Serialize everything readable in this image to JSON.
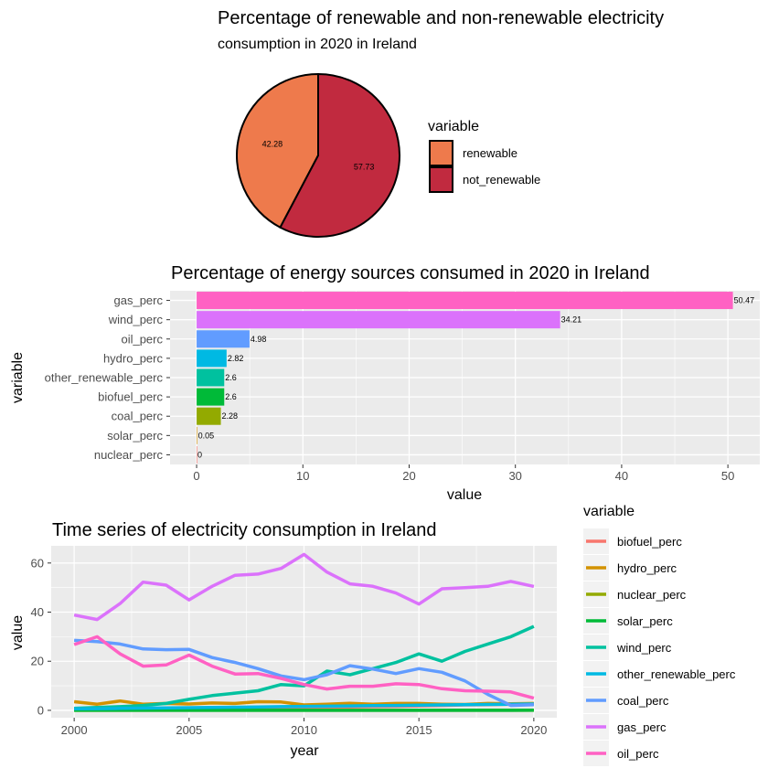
{
  "chart_data": [
    {
      "type": "pie",
      "title": "Percentage of renewable and non-renewable electricity",
      "subtitle": "consumption in 2020 in Ireland",
      "legend_title": "variable",
      "legend_position": "right",
      "slices": [
        {
          "label": "renewable",
          "value": 42.28,
          "color": "#EE7A4C"
        },
        {
          "label": "not_renewable",
          "value": 57.73,
          "color": "#C12A3F"
        }
      ]
    },
    {
      "type": "bar",
      "orientation": "horizontal",
      "title": "Percentage of energy sources consumed in 2020 in Ireland",
      "xlabel": "value",
      "ylabel": "variable",
      "xlim": [
        -2.5,
        53
      ],
      "xticks": [
        0,
        10,
        20,
        30,
        40,
        50
      ],
      "categories": [
        "gas_perc",
        "wind_perc",
        "oil_perc",
        "hydro_perc",
        "other_renewable_perc",
        "biofuel_perc",
        "coal_perc",
        "solar_perc",
        "nuclear_perc"
      ],
      "values": [
        50.47,
        34.21,
        4.98,
        2.82,
        2.6,
        2.6,
        2.28,
        0.05,
        0
      ],
      "value_labels": [
        "50.47",
        "34.21",
        "4.98",
        "2.82",
        "2.6",
        "2.6",
        "2.28",
        "0.05",
        "0"
      ],
      "colors": [
        "#FF61C3",
        "#DB72FB",
        "#619CFF",
        "#00B9E3",
        "#00C19F",
        "#00BA38",
        "#93AA00",
        "#D39200",
        "#F8766D"
      ],
      "grid": true
    },
    {
      "type": "line",
      "title": "Time series of electricity consumption in Ireland",
      "xlabel": "year",
      "ylabel": "value",
      "xlim": [
        1999,
        2021
      ],
      "ylim": [
        -3,
        67
      ],
      "xticks": [
        2000,
        2005,
        2010,
        2015,
        2020
      ],
      "yticks": [
        0,
        20,
        40,
        60
      ],
      "legend_title": "variable",
      "legend_position": "right",
      "grid": true,
      "x": [
        2000,
        2001,
        2002,
        2003,
        2004,
        2005,
        2006,
        2007,
        2008,
        2009,
        2010,
        2011,
        2012,
        2013,
        2014,
        2015,
        2016,
        2017,
        2018,
        2019,
        2020
      ],
      "series": [
        {
          "name": "biofuel_perc",
          "color": "#F8766D",
          "values": [
            0.3,
            0.3,
            0.4,
            0.4,
            0.5,
            0.5,
            0.6,
            0.7,
            0.8,
            1.0,
            1.2,
            1.3,
            1.4,
            1.5,
            1.6,
            1.8,
            2.0,
            2.2,
            2.3,
            2.5,
            2.6
          ]
        },
        {
          "name": "hydro_perc",
          "color": "#D39200",
          "values": [
            3.5,
            2.5,
            3.8,
            2.5,
            2.8,
            2.6,
            3.0,
            2.8,
            3.5,
            3.4,
            2.2,
            2.5,
            2.9,
            2.5,
            2.8,
            2.8,
            2.5,
            2.4,
            2.8,
            2.7,
            2.8
          ]
        },
        {
          "name": "nuclear_perc",
          "color": "#93AA00",
          "values": [
            0,
            0,
            0,
            0,
            0,
            0,
            0,
            0,
            0,
            0,
            0,
            0,
            0,
            0,
            0,
            0,
            0,
            0,
            0,
            0,
            0
          ]
        },
        {
          "name": "solar_perc",
          "color": "#00BA38",
          "values": [
            0,
            0,
            0,
            0,
            0,
            0,
            0,
            0,
            0,
            0,
            0,
            0,
            0,
            0,
            0,
            0,
            0,
            0,
            0,
            0.02,
            0.05
          ]
        },
        {
          "name": "wind_perc",
          "color": "#00C19F",
          "values": [
            0.8,
            1.2,
            1.5,
            2.0,
            2.8,
            4.5,
            6.0,
            7.0,
            8.0,
            10.5,
            10.0,
            16.0,
            14.5,
            17.0,
            19.5,
            23.0,
            20.0,
            24.0,
            27.0,
            30.0,
            34.21
          ]
        },
        {
          "name": "other_renewable_perc",
          "color": "#00B9E3",
          "values": [
            0.6,
            0.7,
            0.8,
            0.9,
            1.0,
            1.1,
            1.2,
            1.3,
            1.4,
            1.5,
            1.6,
            1.7,
            1.8,
            1.9,
            2.0,
            2.1,
            2.2,
            2.3,
            2.4,
            2.5,
            2.6
          ]
        },
        {
          "name": "coal_perc",
          "color": "#619CFF",
          "values": [
            28.5,
            28.0,
            27.0,
            25.0,
            24.7,
            24.8,
            21.5,
            19.5,
            17.0,
            14.0,
            12.5,
            14.5,
            18.2,
            16.8,
            15.0,
            17.0,
            15.5,
            12.0,
            6.5,
            2.0,
            2.28
          ]
        },
        {
          "name": "gas_perc",
          "color": "#DB72FB",
          "values": [
            38.8,
            37.0,
            43.5,
            52.2,
            51.0,
            45.0,
            50.5,
            55.0,
            55.5,
            57.8,
            63.5,
            56.3,
            51.5,
            50.5,
            47.8,
            43.3,
            49.5,
            50.0,
            50.5,
            52.5,
            50.47
          ]
        },
        {
          "name": "oil_perc",
          "color": "#FF61C3",
          "values": [
            26.8,
            30.0,
            23.0,
            18.0,
            18.5,
            22.5,
            18.0,
            14.8,
            15.0,
            13.0,
            10.5,
            8.7,
            9.8,
            9.8,
            10.8,
            10.5,
            8.8,
            8.0,
            7.8,
            7.5,
            4.98
          ]
        }
      ]
    }
  ]
}
